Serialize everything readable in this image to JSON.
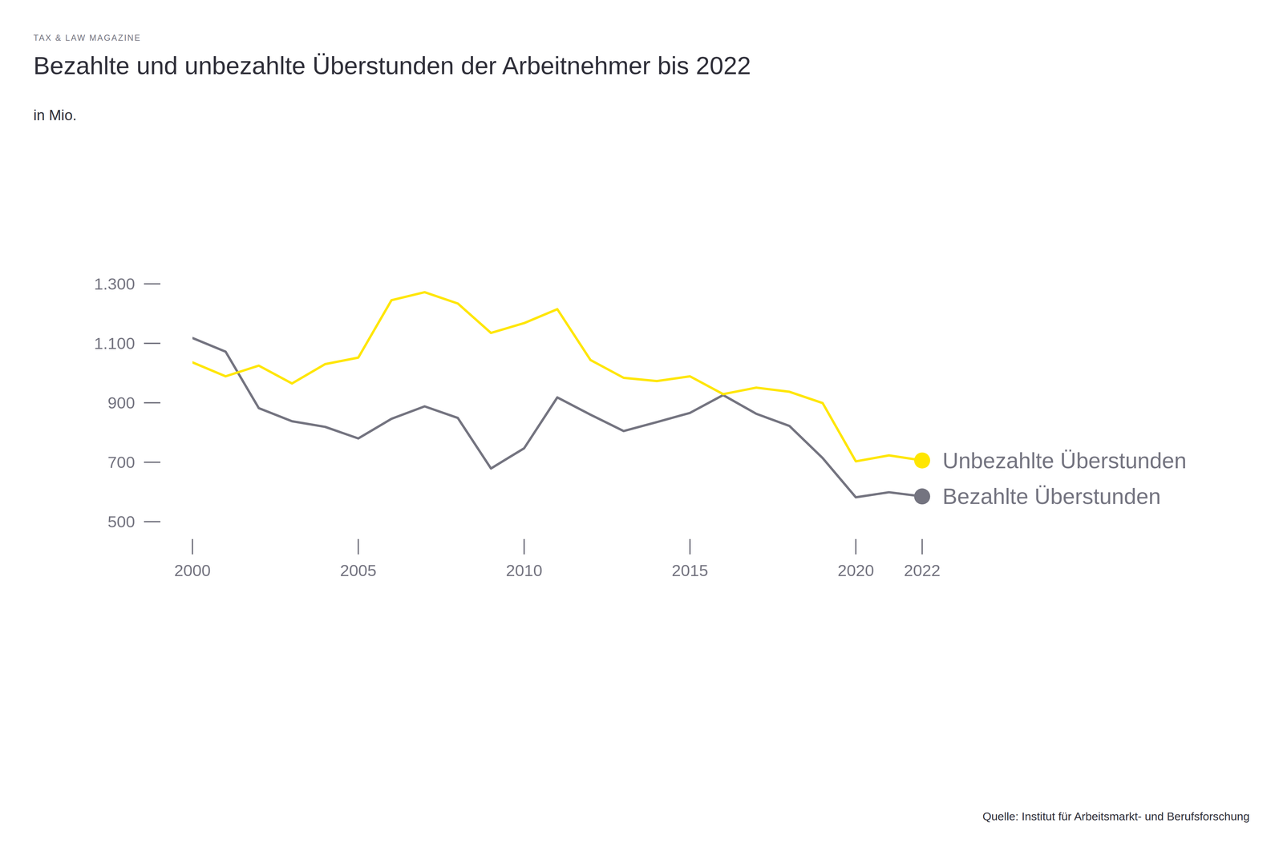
{
  "chart_data": {
    "type": "line",
    "supertitle": "TAX & LAW MAGAZINE",
    "title": "Bezahlte und unbezahlte Überstunden der Arbeitnehmer bis 2022",
    "subtitle": "in Mio.",
    "source": "Quelle: Institut für Arbeitsmarkt- und Berufsforschung",
    "x": [
      2000,
      2001,
      2002,
      2003,
      2004,
      2005,
      2006,
      2007,
      2008,
      2009,
      2010,
      2011,
      2012,
      2013,
      2014,
      2015,
      2016,
      2017,
      2018,
      2019,
      2020,
      2021,
      2022
    ],
    "series": [
      {
        "name": "Unbezahlte Überstunden",
        "color": "#ffe600",
        "values": [
          1036,
          989,
          1025,
          965,
          1030,
          1052,
          1245,
          1272,
          1234,
          1135,
          1168,
          1215,
          1044,
          984,
          973,
          989,
          929,
          951,
          937,
          899,
          703,
          723,
          706
        ]
      },
      {
        "name": "Bezahlte Überstunden",
        "color": "#747480",
        "values": [
          1118,
          1072,
          882,
          838,
          819,
          780,
          846,
          888,
          849,
          679,
          747,
          918,
          860,
          805,
          835,
          866,
          926,
          863,
          822,
          714,
          582,
          599,
          585
        ]
      }
    ],
    "xlim": [
      2000,
      2022
    ],
    "xticks": [
      2000,
      2005,
      2010,
      2015,
      2020,
      2022
    ],
    "ylim": [
      500,
      1300
    ],
    "yticks": [
      500,
      700,
      900,
      {
        "value": 1100,
        "label": "1.100"
      },
      {
        "value": 1300,
        "label": "1.300"
      }
    ],
    "grid": false,
    "legend": "right"
  }
}
